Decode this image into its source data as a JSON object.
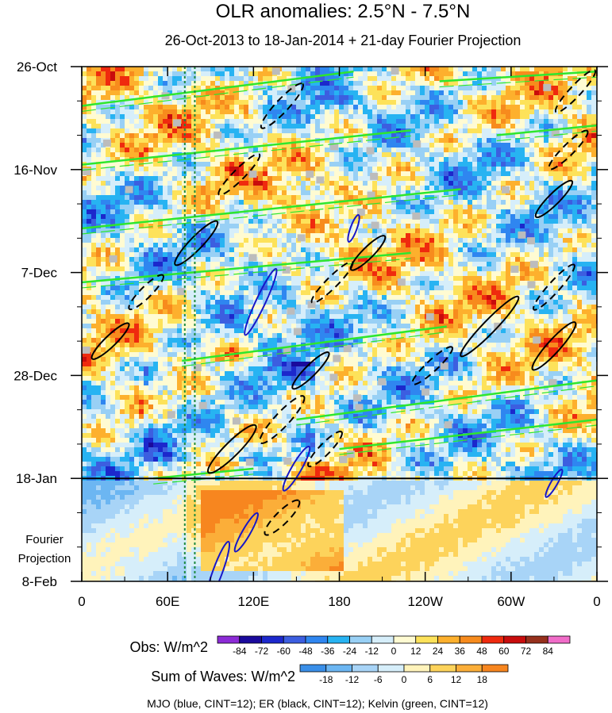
{
  "chart_data": {
    "type": "heatmap",
    "title": "OLR anomalies: 2.5°N - 7.5°N",
    "subtitle": "26-Oct-2013 to 18-Jan-2014 + 21-day Fourier Projection",
    "x_ticks": [
      "0",
      "60E",
      "120E",
      "180",
      "120W",
      "60W",
      "0"
    ],
    "x_values": [
      0,
      60,
      120,
      180,
      240,
      300,
      360
    ],
    "y_ticks": [
      "26-Oct",
      "16-Nov",
      "7-Dec",
      "28-Dec",
      "18-Jan",
      "8-Feb"
    ],
    "y_days": [
      0,
      21,
      42,
      63,
      84,
      105
    ],
    "projection_start_day": 84,
    "projection_label": [
      "Fourier",
      "Projection"
    ],
    "obs_colorbar": {
      "label": "Obs: W/m^2",
      "levels": [
        -84,
        -72,
        -60,
        -48,
        -36,
        -24,
        -12,
        0,
        12,
        24,
        36,
        48,
        60,
        72,
        84
      ],
      "colors": [
        "#8c2bd6",
        "#1a0a9c",
        "#1c28cc",
        "#3c5ee0",
        "#2f86f0",
        "#27b3f2",
        "#98d0f5",
        "#d6eefa",
        "#fffbd2",
        "#fde25a",
        "#fdb02d",
        "#f78b1d",
        "#ef2a0e",
        "#c80c0c",
        "#96301c",
        "#f06cc8"
      ]
    },
    "waves_colorbar": {
      "label": "Sum of Waves: W/m^2",
      "levels": [
        -18,
        -12,
        -6,
        0,
        6,
        12,
        18
      ],
      "colors": [
        "#3a8fe8",
        "#6cb6f2",
        "#a8d4f7",
        "#d6eefa",
        "#fff3bb",
        "#fdd35b",
        "#fbae39",
        "#f7861f"
      ]
    },
    "footer": "MJO (blue, CINT=12); ER (black, CINT=12); Kelvin (green, CINT=12)",
    "markers": {
      "longitude_lines_deg": [
        72,
        79
      ],
      "color": "#1e8a3e"
    },
    "kelvin_waves": [
      {
        "lon0": 0,
        "day0": 8,
        "lon1": 190,
        "day1": 1
      },
      {
        "lon0": 0,
        "day0": 20,
        "lon1": 230,
        "day1": 13
      },
      {
        "lon0": 0,
        "day0": 33,
        "lon1": 265,
        "day1": 25
      },
      {
        "lon0": 0,
        "day0": 44,
        "lon1": 230,
        "day1": 38
      },
      {
        "lon0": 70,
        "day0": 60,
        "lon1": 255,
        "day1": 53
      },
      {
        "lon0": 150,
        "day0": 72,
        "lon1": 360,
        "day1": 64
      },
      {
        "lon0": 180,
        "day0": 78,
        "lon1": 360,
        "day1": 72
      },
      {
        "lon0": 250,
        "day0": 3,
        "lon1": 360,
        "day1": 1
      },
      {
        "lon0": 290,
        "day0": 14,
        "lon1": 360,
        "day1": 12
      },
      {
        "lon0": 50,
        "day0": 84,
        "lon1": 120,
        "day1": 82
      }
    ],
    "er_waves": [
      {
        "lon": 245,
        "day": 61,
        "len": 34,
        "wid": 7,
        "ang": 43,
        "dash": true
      },
      {
        "lon": 285,
        "day": 53,
        "len": 52,
        "wid": 8,
        "ang": 46,
        "dash": false
      },
      {
        "lon": 330,
        "day": 57,
        "len": 40,
        "wid": 8,
        "ang": 48,
        "dash": false
      },
      {
        "lon": 330,
        "day": 45,
        "len": 38,
        "wid": 7,
        "ang": 48,
        "dash": true
      },
      {
        "lon": 330,
        "day": 27,
        "len": 32,
        "wid": 7,
        "ang": 45,
        "dash": false
      },
      {
        "lon": 345,
        "day": 5,
        "len": 36,
        "wid": 7,
        "ang": 47,
        "dash": true
      },
      {
        "lon": 340,
        "day": 17,
        "len": 34,
        "wid": 7,
        "ang": 45,
        "dash": true
      },
      {
        "lon": 200,
        "day": 38,
        "len": 30,
        "wid": 7,
        "ang": 45,
        "dash": false
      },
      {
        "lon": 175,
        "day": 44,
        "len": 36,
        "wid": 7,
        "ang": 45,
        "dash": true
      },
      {
        "lon": 140,
        "day": 8,
        "len": 38,
        "wid": 8,
        "ang": 47,
        "dash": true
      },
      {
        "lon": 110,
        "day": 22,
        "len": 36,
        "wid": 7,
        "ang": 45,
        "dash": true
      },
      {
        "lon": 80,
        "day": 36,
        "len": 38,
        "wid": 8,
        "ang": 46,
        "dash": false
      },
      {
        "lon": 45,
        "day": 46,
        "len": 30,
        "wid": 7,
        "ang": 45,
        "dash": true
      },
      {
        "lon": 20,
        "day": 56,
        "len": 32,
        "wid": 7,
        "ang": 44,
        "dash": false
      },
      {
        "lon": 140,
        "day": 72,
        "len": 40,
        "wid": 9,
        "ang": 47,
        "dash": true
      },
      {
        "lon": 105,
        "day": 78,
        "len": 42,
        "wid": 9,
        "ang": 45,
        "dash": false
      },
      {
        "lon": 140,
        "day": 92,
        "len": 30,
        "wid": 8,
        "ang": 45,
        "dash": true
      },
      {
        "lon": 160,
        "day": 62,
        "len": 32,
        "wid": 7,
        "ang": 45,
        "dash": false
      },
      {
        "lon": 170,
        "day": 78,
        "len": 30,
        "wid": 7,
        "ang": 46,
        "dash": true
      }
    ],
    "mjo_waves": [
      {
        "lon": 95,
        "day": 103,
        "len": 40,
        "wid": 6,
        "ang": 70
      },
      {
        "lon": 115,
        "day": 95,
        "len": 28,
        "wid": 5,
        "ang": 60
      },
      {
        "lon": 150,
        "day": 82,
        "len": 32,
        "wid": 6,
        "ang": 60
      },
      {
        "lon": 125,
        "day": 48,
        "len": 46,
        "wid": 6,
        "ang": 65
      },
      {
        "lon": 190,
        "day": 33,
        "len": 18,
        "wid": 4,
        "ang": 70
      },
      {
        "lon": 330,
        "day": 85,
        "len": 20,
        "wid": 4,
        "ang": 60
      }
    ]
  }
}
